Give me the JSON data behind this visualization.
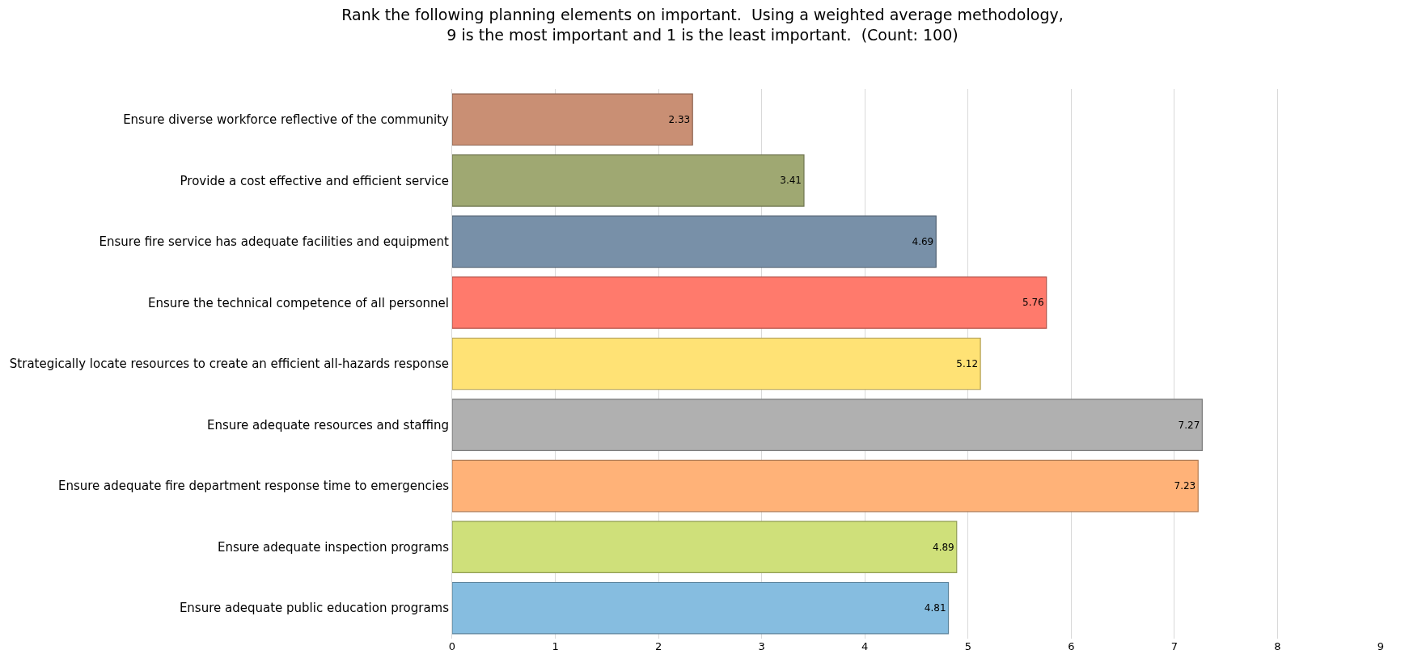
{
  "chart_data": {
    "type": "bar",
    "orientation": "horizontal",
    "title": "Rank the following planning elements on important.  Using a weighted average methodology,\n9 is the most important and 1 is the least important.  (Count: 100)",
    "categories": [
      "Ensure diverse workforce reflective of the community",
      "Provide a cost effective and efficient service",
      "Ensure fire service has adequate facilities and equipment",
      "Ensure the technical competence of all personnel",
      "Strategically locate resources to create an efficient all-hazards response",
      "Ensure adequate resources and staffing",
      "Ensure adequate fire department response time to emergencies",
      "Ensure adequate inspection programs",
      "Ensure adequate public education programs"
    ],
    "values": [
      2.33,
      3.41,
      4.69,
      5.76,
      5.12,
      7.27,
      7.23,
      4.89,
      4.81
    ],
    "colors": [
      "#c98f74",
      "#9fa872",
      "#7890a8",
      "#ff7a6c",
      "#ffe275",
      "#b0b0b0",
      "#ffb278",
      "#cfe07a",
      "#86bde0"
    ],
    "xlim": [
      0,
      9
    ],
    "xticks": [
      0,
      1,
      2,
      3,
      4,
      5,
      6,
      7,
      8,
      9
    ],
    "grid": "x",
    "data_labels": true
  }
}
